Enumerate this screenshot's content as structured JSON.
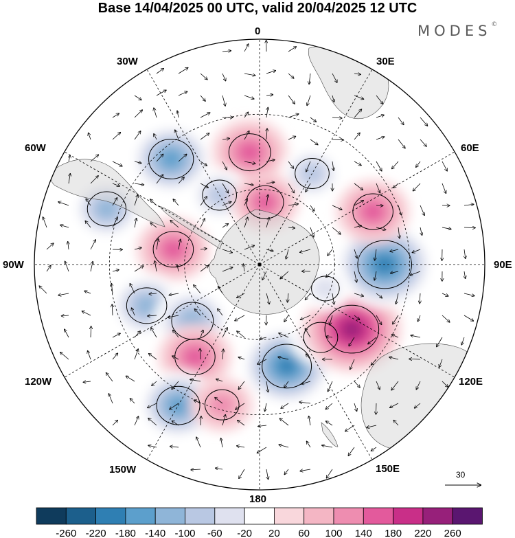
{
  "title": "Base 14/04/2025 00 UTC, valid 20/04/2025 12 UTC",
  "brand": "MODES",
  "brand_mark": "©",
  "longitude_labels": {
    "lon_0": "0",
    "lon_30e": "30E",
    "lon_60e": "60E",
    "lon_90e": "90E",
    "lon_120e": "120E",
    "lon_150e": "150E",
    "lon_180": "180",
    "lon_150w": "150W",
    "lon_120w": "120W",
    "lon_90w": "90W",
    "lon_60w": "60W",
    "lon_30w": "30W"
  },
  "reference_vector_label": "30",
  "colorbar": {
    "colors": [
      "#0f3b5c",
      "#1c5f8c",
      "#2f7fb3",
      "#5c9fcc",
      "#8fb5d8",
      "#b9c8e3",
      "#dfe1ef",
      "#ffffff",
      "#f9d7dc",
      "#f4b6c4",
      "#ee8db0",
      "#e35a9c",
      "#c92f88",
      "#97207a",
      "#5a1670"
    ],
    "labels": [
      "-260",
      "-220",
      "-180",
      "-140",
      "-100",
      "-60",
      "-20",
      "20",
      "60",
      "100",
      "140",
      "180",
      "220",
      "260"
    ]
  },
  "anomaly_features": [
    {
      "lon": -5,
      "lat": -45,
      "value": 150
    },
    {
      "lon": -40,
      "lat": -35,
      "value": -170
    },
    {
      "lon": -70,
      "lat": -25,
      "value": -130
    },
    {
      "lon": -30,
      "lat": -58,
      "value": -100
    },
    {
      "lon": -80,
      "lat": -55,
      "value": 140
    },
    {
      "lon": -110,
      "lat": -42,
      "value": -140
    },
    {
      "lon": -130,
      "lat": -55,
      "value": -150
    },
    {
      "lon": -145,
      "lat": -45,
      "value": 140
    },
    {
      "lon": -150,
      "lat": -25,
      "value": -160
    },
    {
      "lon": -165,
      "lat": -32,
      "value": 100
    },
    {
      "lon": 165,
      "lat": -48,
      "value": -200
    },
    {
      "lon": 140,
      "lat": -52,
      "value": -100
    },
    {
      "lon": 125,
      "lat": -45,
      "value": 230
    },
    {
      "lon": 90,
      "lat": -40,
      "value": -230
    },
    {
      "lon": 65,
      "lat": -40,
      "value": 140
    },
    {
      "lon": 30,
      "lat": -48,
      "value": -100
    },
    {
      "lon": 5,
      "lat": -65,
      "value": 120
    },
    {
      "lon": 110,
      "lat": -62,
      "value": -60
    }
  ]
}
